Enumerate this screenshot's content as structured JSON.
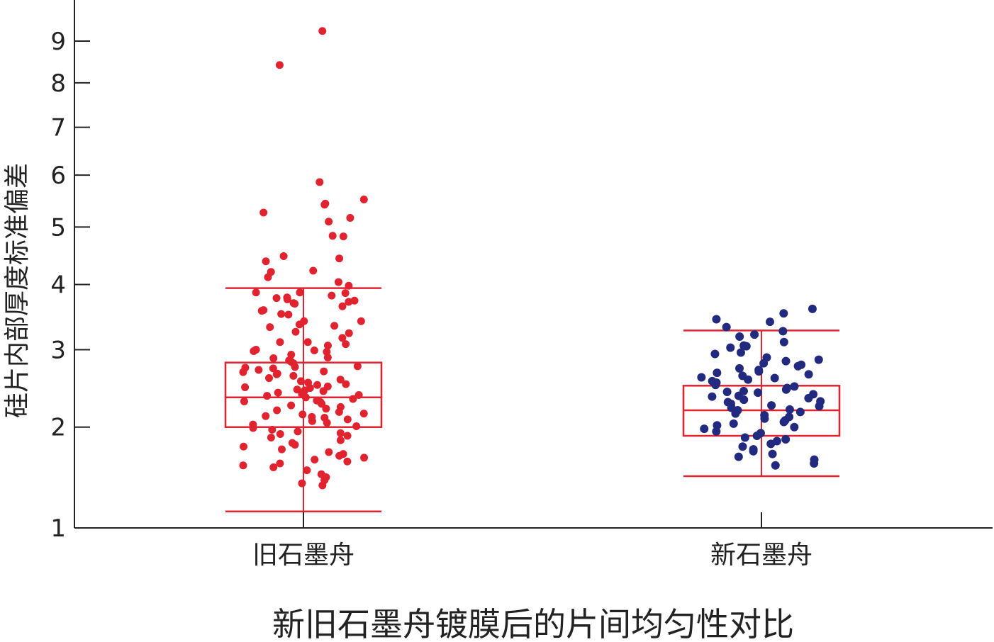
{
  "chart_data": {
    "type": "box-scatter",
    "title": "新旧石墨舟镀膜后的片间均匀性对比",
    "xlabel": "",
    "ylabel": "硅片内部厚度标准偏差",
    "ylim": [
      1,
      9.5
    ],
    "yticks": [
      1,
      2,
      3,
      4,
      5,
      6,
      7,
      8,
      9
    ],
    "y_scale": "sqrt",
    "grid": false,
    "categories": [
      "旧石墨舟",
      "新石墨舟"
    ],
    "colors": {
      "old_points": "#e0232e",
      "new_points": "#222a80",
      "box": "#e0232e",
      "axis": "#222222"
    },
    "series": [
      {
        "name": "旧石墨舟",
        "box": {
          "whisker_low": 1.14,
          "q1": 2.0,
          "median": 2.36,
          "q3": 2.82,
          "whisker_high": 3.94
        },
        "points": [
          9.25,
          8.42,
          5.86,
          5.52,
          5.44,
          5.42,
          5.27,
          5.17,
          5.1,
          4.83,
          4.84,
          4.48,
          4.44,
          4.39,
          4.23,
          4.21,
          4.12,
          4.04,
          3.98,
          3.86,
          3.87,
          3.87,
          3.82,
          3.79,
          3.78,
          3.76,
          3.74,
          3.72,
          3.7,
          3.69,
          3.65,
          3.59,
          3.58,
          3.53,
          3.52,
          3.42,
          3.42,
          3.37,
          3.35,
          3.33,
          3.26,
          3.24,
          3.17,
          3.11,
          3.11,
          3.08,
          3.06,
          3.0,
          2.99,
          2.98,
          2.97,
          2.93,
          2.89,
          2.88,
          2.85,
          2.83,
          2.81,
          2.77,
          2.76,
          2.75,
          2.74,
          2.72,
          2.7,
          2.69,
          2.67,
          2.66,
          2.64,
          2.61,
          2.59,
          2.57,
          2.55,
          2.53,
          2.52,
          2.5,
          2.49,
          2.48,
          2.46,
          2.45,
          2.44,
          2.42,
          2.4,
          2.39,
          2.38,
          2.36,
          2.34,
          2.32,
          2.31,
          2.3,
          2.28,
          2.26,
          2.24,
          2.22,
          2.2,
          2.18,
          2.16,
          2.15,
          2.13,
          2.12,
          2.11,
          2.09,
          2.07,
          2.05,
          2.03,
          2.01,
          1.99,
          1.97,
          1.95,
          1.93,
          1.92,
          1.9,
          1.88,
          1.85,
          1.82,
          1.8,
          1.78,
          1.75,
          1.72,
          1.7,
          1.68,
          1.66,
          1.64,
          1.62,
          1.6,
          1.58,
          1.56,
          1.53,
          1.49,
          1.46,
          1.43,
          1.4,
          1.38
        ]
      },
      {
        "name": "新石墨舟",
        "box": {
          "whisker_low": 1.47,
          "q1": 1.9,
          "median": 2.2,
          "q3": 2.51,
          "whisker_high": 3.28
        },
        "points": [
          3.61,
          3.54,
          3.45,
          3.41,
          3.33,
          3.27,
          3.22,
          3.19,
          3.11,
          3.06,
          3.05,
          3.03,
          2.96,
          2.94,
          2.89,
          2.86,
          2.84,
          2.81,
          2.79,
          2.77,
          2.74,
          2.72,
          2.7,
          2.68,
          2.66,
          2.64,
          2.62,
          2.61,
          2.59,
          2.57,
          2.55,
          2.54,
          2.52,
          2.5,
          2.48,
          2.46,
          2.44,
          2.43,
          2.42,
          2.4,
          2.38,
          2.37,
          2.35,
          2.33,
          2.31,
          2.3,
          2.28,
          2.26,
          2.25,
          2.23,
          2.21,
          2.2,
          2.18,
          2.16,
          2.14,
          2.12,
          2.1,
          2.08,
          2.06,
          2.04,
          2.02,
          2.0,
          1.98,
          1.95,
          1.93,
          1.9,
          1.88,
          1.86,
          1.84,
          1.81,
          1.78,
          1.75,
          1.73,
          1.7,
          1.67,
          1.64,
          1.6,
          1.58
        ]
      }
    ]
  }
}
